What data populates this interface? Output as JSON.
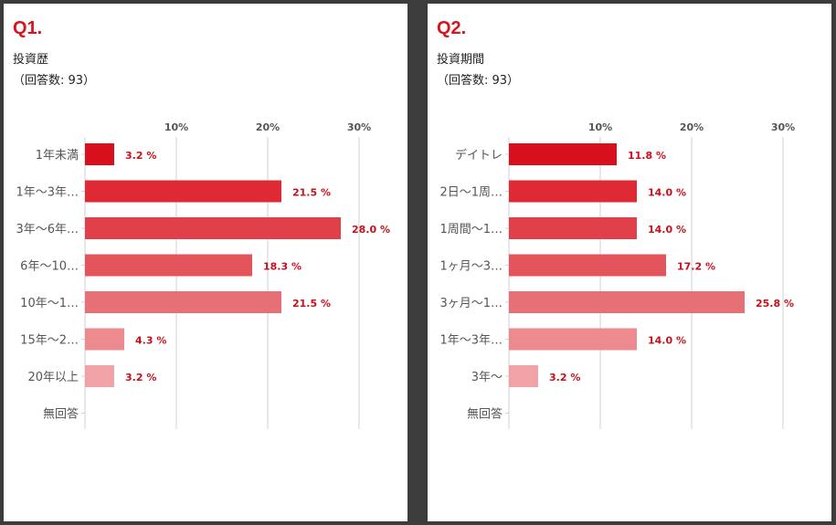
{
  "colors": {
    "background": "#3c3c3c",
    "panel": "#ffffff",
    "accent": "#d9141e",
    "value_text": "#c8101b",
    "grid": "#cfcfd8",
    "bar_shades": [
      "#d8101c",
      "#df2a35",
      "#e04049",
      "#e3545c",
      "#e76f76",
      "#ec8a90",
      "#f0a2a7",
      "#f4b8bc"
    ]
  },
  "charts": [
    {
      "question": "Q1.",
      "title": "投資歴",
      "subtitle": "（回答数: 93）",
      "chart_data": {
        "type": "bar",
        "orientation": "horizontal",
        "categories": [
          "1年未満",
          "1年～3年…",
          "3年～6年…",
          "6年～10…",
          "10年～1…",
          "15年～2…",
          "20年以上",
          "無回答"
        ],
        "values": [
          3.2,
          21.5,
          28.0,
          18.3,
          21.5,
          4.3,
          3.2,
          0
        ],
        "value_labels": [
          "3.2 %",
          "21.5 %",
          "28.0 %",
          "18.3 %",
          "21.5 %",
          "4.3 %",
          "3.2 %",
          ""
        ],
        "ticks": [
          10,
          20,
          30
        ],
        "tick_labels": [
          "10%",
          "20%",
          "30%"
        ],
        "xlim": [
          0,
          31
        ],
        "unit": "%",
        "grid": true
      }
    },
    {
      "question": "Q2.",
      "title": "投資期間",
      "subtitle": "（回答数: 93）",
      "chart_data": {
        "type": "bar",
        "orientation": "horizontal",
        "categories": [
          "デイトレ",
          "2日～1周…",
          "1周間～1…",
          "1ヶ月～3…",
          "3ヶ月～1…",
          "1年～3年…",
          "3年～",
          "無回答"
        ],
        "values": [
          11.8,
          14.0,
          14.0,
          17.2,
          25.8,
          14.0,
          3.2,
          0
        ],
        "value_labels": [
          "11.8 %",
          "14.0 %",
          "14.0 %",
          "17.2 %",
          "25.8 %",
          "14.0 %",
          "3.2 %",
          ""
        ],
        "ticks": [
          10,
          20,
          30
        ],
        "tick_labels": [
          "10%",
          "20%",
          "30%"
        ],
        "xlim": [
          0,
          31
        ],
        "unit": "%",
        "grid": true
      }
    }
  ]
}
